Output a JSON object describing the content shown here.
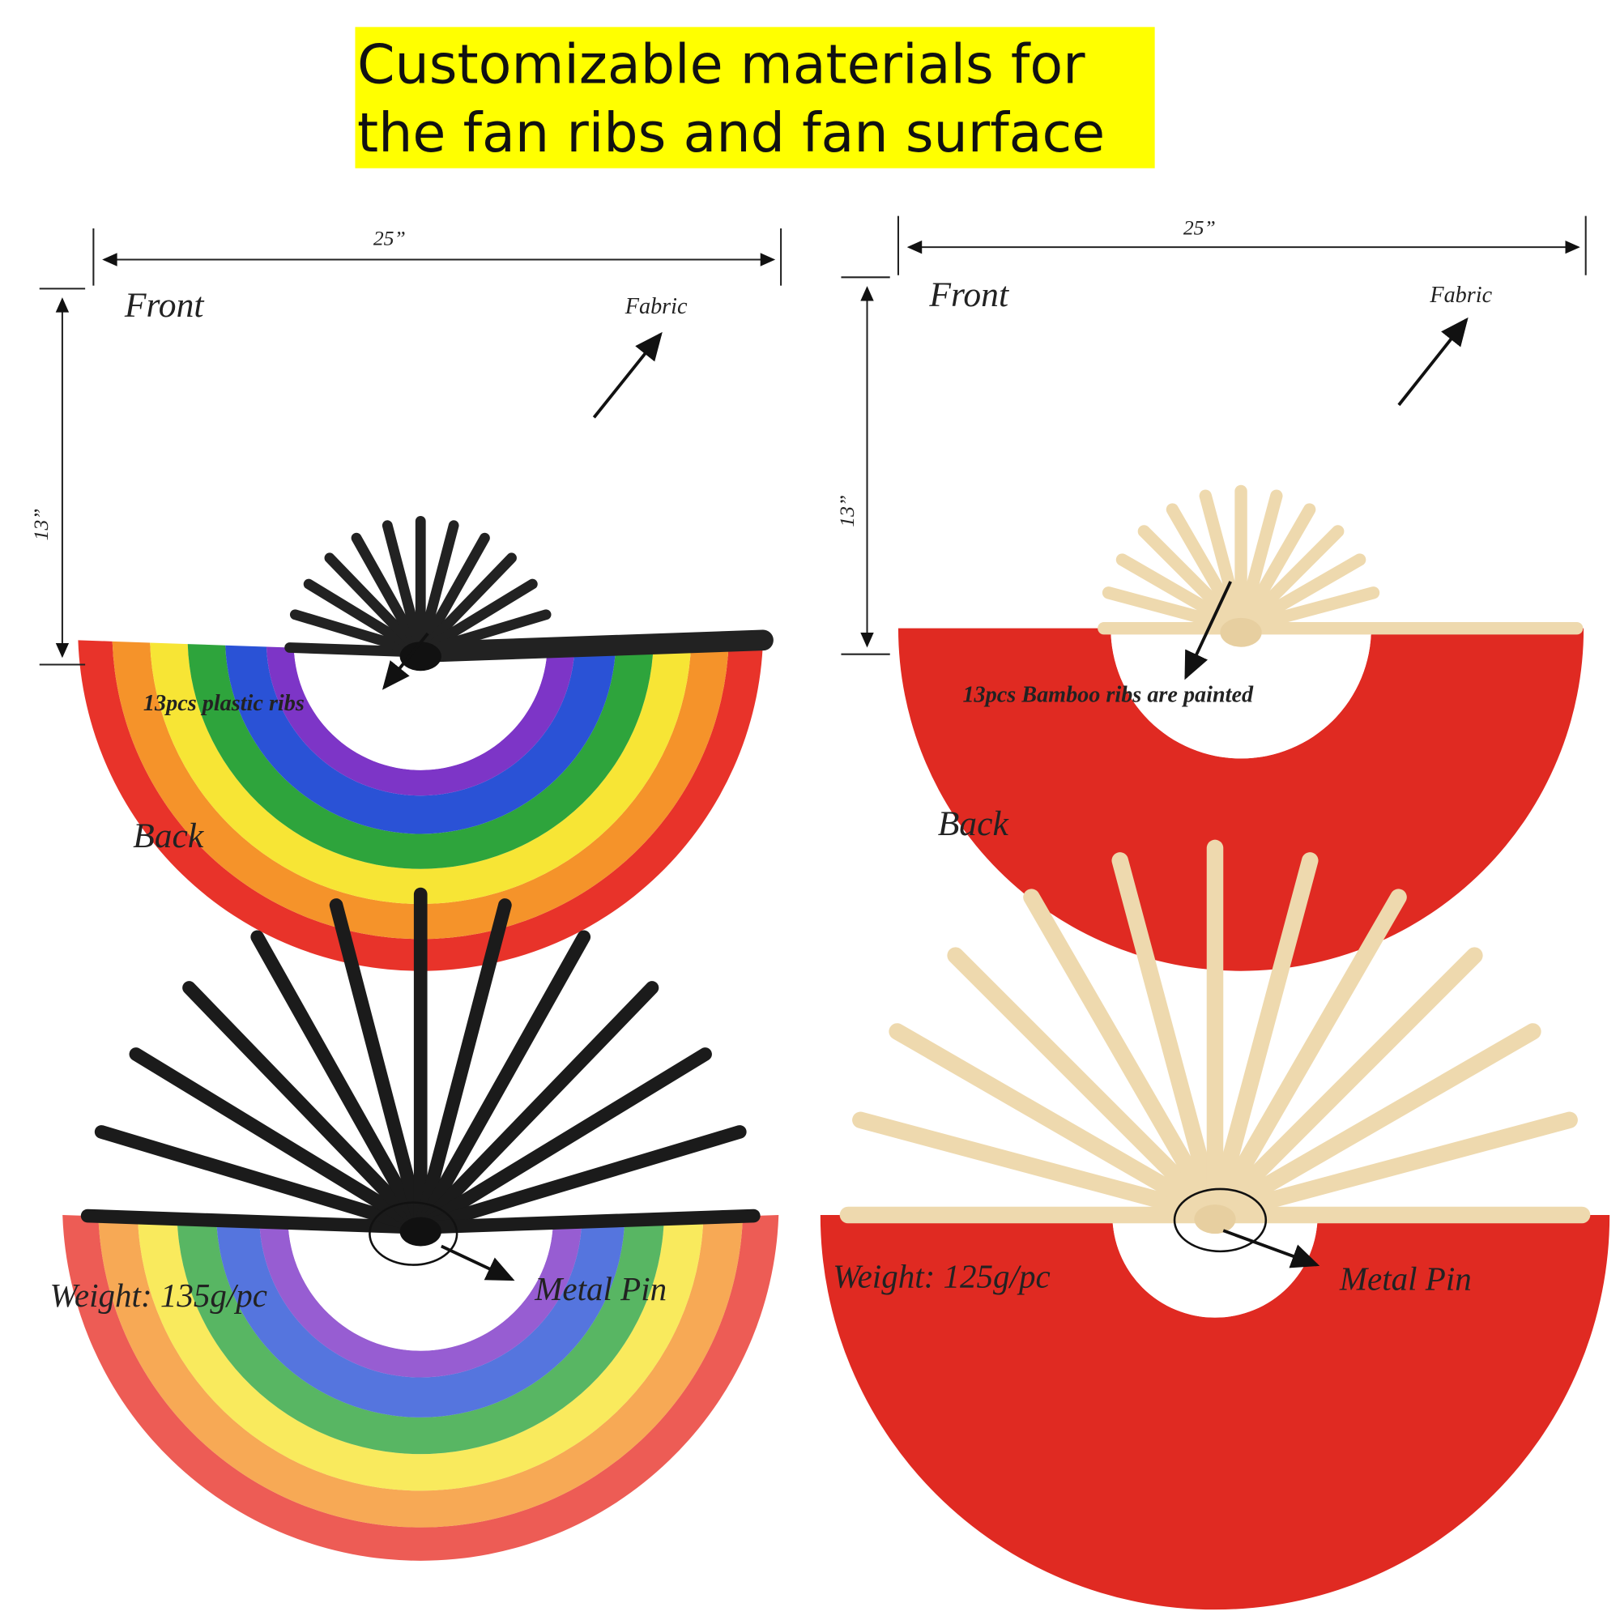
{
  "header": {
    "title_lines": [
      "Customizable materials for",
      "the fan ribs and fan surface"
    ]
  },
  "panels": [
    {
      "width": "25”",
      "height": "13”",
      "side": "Front",
      "surface": "Fabric",
      "ribs": "13pcs plastic ribs"
    },
    {
      "width": "25”",
      "height": "13”",
      "side": "Front",
      "surface": "Fabric",
      "ribs": "13pcs  Bamboo ribs are painted"
    },
    {
      "side": "Back",
      "weight": "Weight: 135g/pc",
      "pin": "Metal Pin"
    },
    {
      "side": "Back",
      "weight": "Weight: 125g/pc",
      "pin": "Metal Pin"
    }
  ]
}
